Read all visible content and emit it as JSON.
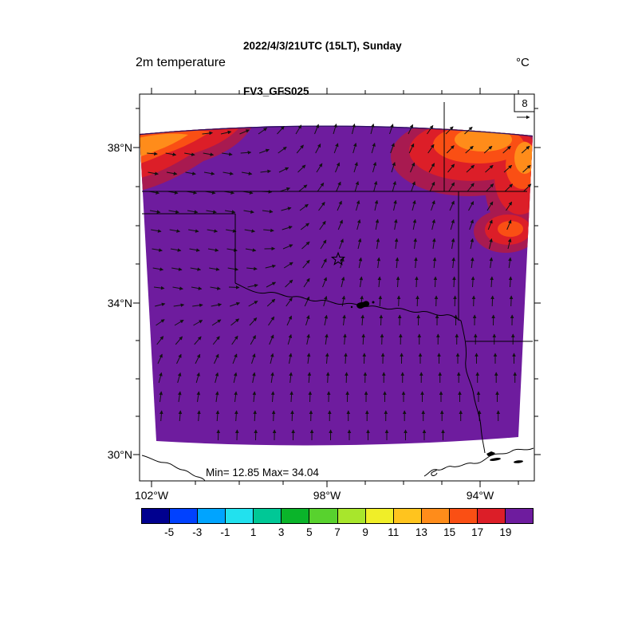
{
  "header": {
    "title_line1": "2022/4/3/21UTC (15LT), Sunday",
    "title_line2": "FV3_GFS025"
  },
  "plot": {
    "field_label": "2m temperature",
    "units_label": "°C",
    "annotation": "Min= 12.85 Max= 34.04",
    "field_min": 12.85,
    "field_max": 34.04,
    "reference_vector_value": "8"
  },
  "axes": {
    "lat_ticks": [
      {
        "label": "38°N"
      },
      {
        "label": "34°N"
      },
      {
        "label": "30°N"
      }
    ],
    "lon_ticks": [
      {
        "label": "102°W"
      },
      {
        "label": "98°W"
      },
      {
        "label": "94°W"
      }
    ]
  },
  "colorbar": {
    "colors": [
      "#00008f",
      "#0041ff",
      "#00a4ff",
      "#22e1ee",
      "#00c896",
      "#0ab42a",
      "#58d22e",
      "#a8e62c",
      "#f0ee28",
      "#ffc41e",
      "#ff8c1a",
      "#fa4f14",
      "#dc1e28",
      "#6e1c9e"
    ],
    "tick_labels": [
      "-5",
      "-3",
      "-1",
      "1",
      "3",
      "5",
      "7",
      "9",
      "11",
      "13",
      "15",
      "17",
      "19"
    ]
  },
  "palette": {
    "patch_rim": "#a81a50",
    "edge_dark": "#2a1060",
    "cool_speck": "#2a35b0",
    "arrow": "#111111"
  },
  "chart_data": {
    "type": "heatmap",
    "title": "2m temperature",
    "units": "°C",
    "valid_time": "2022/4/3/21UTC (15LT), Sunday",
    "model": "FV3_GFS025",
    "field_min": 12.85,
    "field_max": 34.04,
    "contour_levels": [
      -5,
      -3,
      -1,
      1,
      3,
      5,
      7,
      9,
      11,
      13,
      15,
      17,
      19
    ],
    "level_colors": [
      "#00008f",
      "#0041ff",
      "#00a4ff",
      "#22e1ee",
      "#00c896",
      "#0ab42a",
      "#58d22e",
      "#a8e62c",
      "#f0ee28",
      "#ffc41e",
      "#ff8c1a",
      "#fa4f14",
      "#dc1e28",
      "#6e1c9e"
    ],
    "x_tick_labels": [
      "102°W",
      "98°W",
      "94°W"
    ],
    "y_tick_labels": [
      "38°N",
      "34°N",
      "30°N"
    ],
    "wind_reference": 8,
    "legend_position": "bottom",
    "overlays": [
      "wind vectors",
      "state and coastal boundaries",
      "open star marker near map center",
      "lake polygon on Red River"
    ],
    "notes": "Field predominantly above 19°C (violet); 13-19°C warm bands along north edge and northeast corner"
  }
}
